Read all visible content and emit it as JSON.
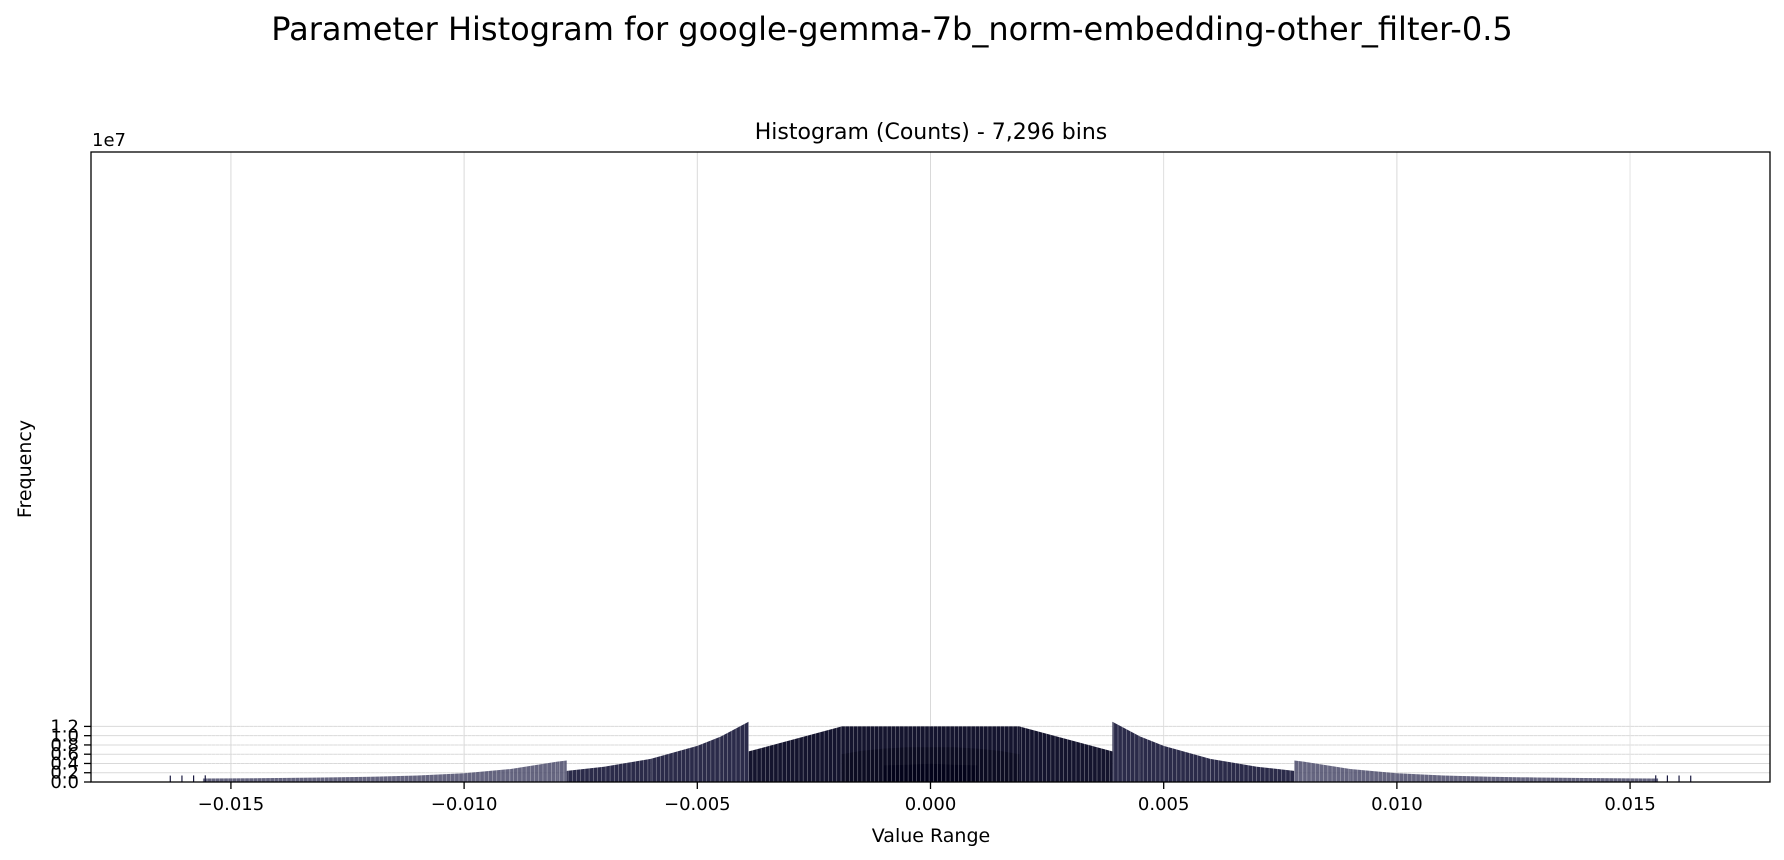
{
  "chart_data": {
    "type": "bar",
    "title": "Parameter Histogram for google-gemma-7b_norm-embedding-other_filter-0.5",
    "subtitle": "Histogram (Counts) - 7,296 bins",
    "xlabel": "Value Range",
    "ylabel": "Frequency",
    "y_scale_label": "1e7",
    "xlim": [
      -0.018,
      0.018
    ],
    "ylim": [
      0,
      13.6
    ],
    "y_units_note": "y values in units of 1e7",
    "x_ticks": [
      -0.015,
      -0.01,
      -0.005,
      0.0,
      0.005,
      0.01,
      0.015
    ],
    "x_tick_labels": [
      "−0.015",
      "−0.010",
      "−0.005",
      "0.000",
      "0.005",
      "0.010",
      "0.015"
    ],
    "y_ticks": [
      0.0,
      0.2,
      0.4,
      0.6,
      0.8,
      1.0,
      1.2
    ],
    "y_tick_labels": [
      "0.0",
      "0.2",
      "0.4",
      "0.6",
      "0.8",
      "1.0",
      "1.2"
    ],
    "grid": true,
    "bar_color": "#1a1a40",
    "outer_bars": {
      "x": [
        -0.0163,
        -0.01605,
        -0.0158,
        -0.01555,
        0.01555,
        0.0158,
        0.01605,
        0.0163
      ],
      "values": [
        0.138,
        0.14,
        0.142,
        0.144,
        0.144,
        0.142,
        0.14,
        0.138
      ]
    },
    "series": [
      {
        "segment": "tail",
        "x": [
          -0.0156,
          -0.015,
          -0.014,
          -0.013,
          -0.012,
          -0.011,
          -0.01,
          -0.009,
          -0.008,
          -0.0078,
          0.0078,
          0.008,
          0.009,
          0.01,
          0.011,
          0.012,
          0.013,
          0.014,
          0.015,
          0.0156
        ],
        "values": [
          0.075,
          0.078,
          0.086,
          0.097,
          0.113,
          0.14,
          0.19,
          0.28,
          0.44,
          0.465,
          0.465,
          0.44,
          0.28,
          0.19,
          0.14,
          0.113,
          0.097,
          0.086,
          0.078,
          0.075
        ]
      },
      {
        "segment": "mid",
        "x": [
          -0.0078,
          -0.007,
          -0.006,
          -0.005,
          -0.0045,
          -0.0039,
          0.0039,
          0.0045,
          0.005,
          0.006,
          0.007,
          0.0078
        ],
        "values": [
          0.24,
          0.33,
          0.5,
          0.78,
          0.98,
          1.3,
          1.3,
          0.98,
          0.78,
          0.5,
          0.33,
          0.24
        ]
      },
      {
        "segment": "inner",
        "x": [
          -0.0039,
          -0.0019,
          0.0019,
          0.0039
        ],
        "values": [
          0.66,
          1.2,
          1.2,
          0.66
        ]
      },
      {
        "segment": "core",
        "x": [
          -0.0019,
          -0.0015,
          -0.001,
          -0.0005,
          0.0005,
          0.001,
          0.0015,
          0.0019
        ],
        "values": [
          0.6,
          0.67,
          0.72,
          0.75,
          0.75,
          0.72,
          0.67,
          0.6
        ]
      },
      {
        "segment": "center",
        "x": [
          -0.001,
          -0.0005,
          -0.0002,
          0.0,
          0.0002,
          0.0005,
          0.001
        ],
        "values": [
          0.36,
          0.37,
          0.385,
          0.39,
          0.385,
          0.37,
          0.36
        ]
      }
    ]
  }
}
